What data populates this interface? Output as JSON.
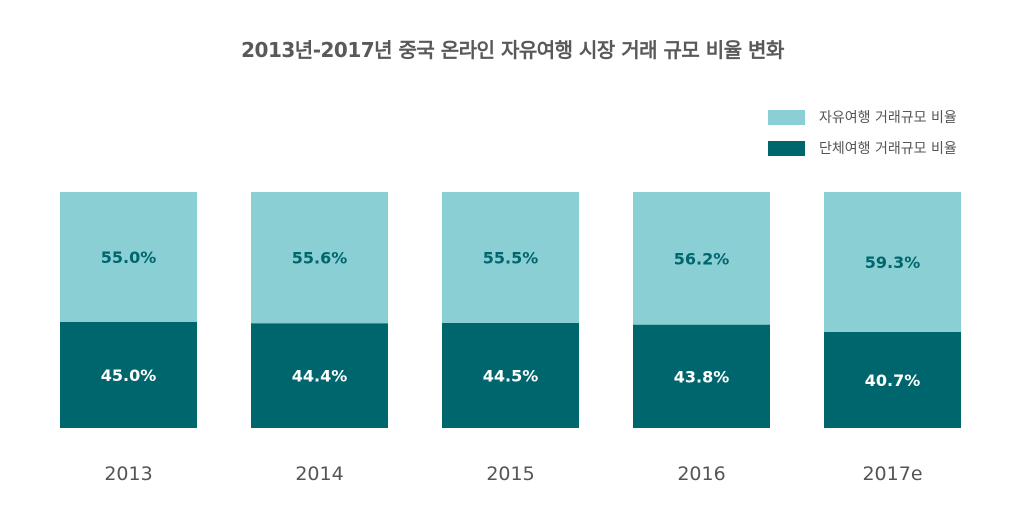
{
  "chart_data": {
    "type": "bar",
    "stacked": true,
    "title": "2013년-2017년 중국 온라인 자유여행 시장 거래 규모 비율 변화",
    "categories": [
      "2013",
      "2014",
      "2015",
      "2016",
      "2017e"
    ],
    "series": [
      {
        "name": "자유여행 거래규모 비율",
        "color": "#8ACFD4",
        "values": [
          55.0,
          55.6,
          55.5,
          56.2,
          59.3
        ],
        "labels": [
          "55.0%",
          "55.6%",
          "55.5%",
          "56.2%",
          "59.3%"
        ]
      },
      {
        "name": "단체여행 거래규모 비율",
        "color": "#00666E",
        "values": [
          45.0,
          44.4,
          44.5,
          43.8,
          40.7
        ],
        "labels": [
          "45.0%",
          "44.4%",
          "44.5%",
          "43.8%",
          "40.7%"
        ]
      }
    ],
    "ylim": [
      0,
      100
    ],
    "legend_position": "top-right",
    "grid": false
  }
}
